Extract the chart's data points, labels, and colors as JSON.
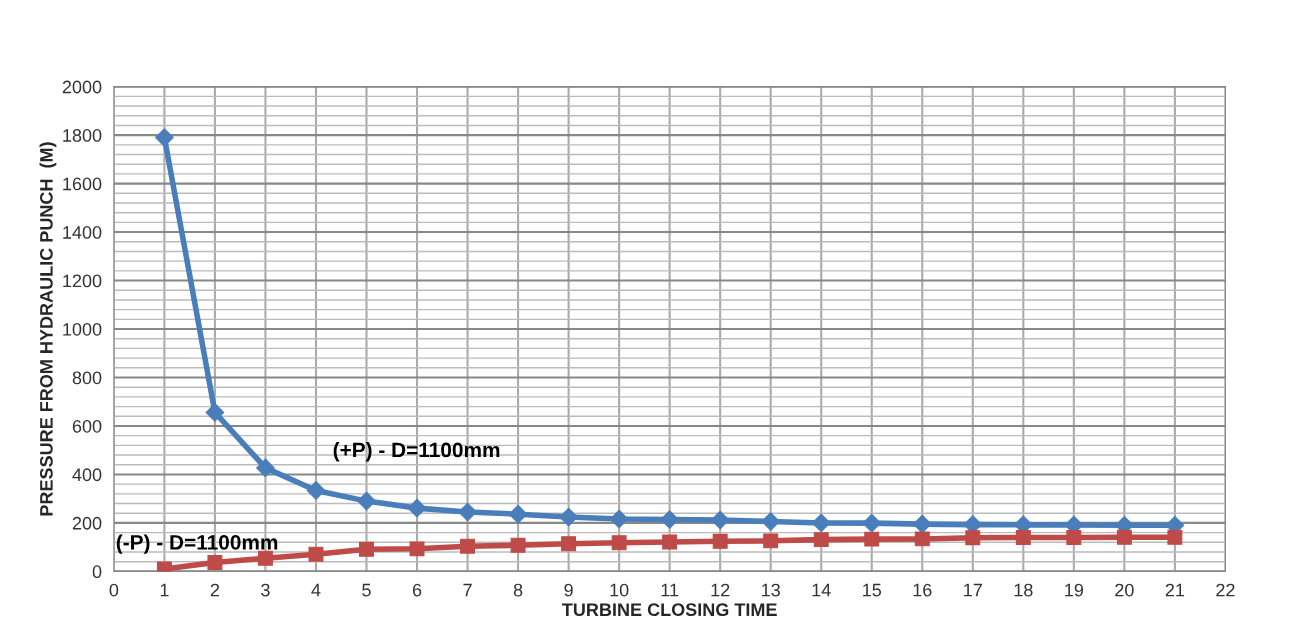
{
  "chart_data": {
    "type": "line",
    "xlabel": "TURBINE CLOSING TIME",
    "ylabel": "PRESSURE FROM HYDRAULIC PUNCH  (M)",
    "x": [
      1,
      2,
      3,
      4,
      5,
      6,
      7,
      8,
      9,
      10,
      11,
      12,
      13,
      14,
      15,
      16,
      17,
      18,
      19,
      20,
      21
    ],
    "series": [
      {
        "name": "(+P) - D=1100mm",
        "color": "#4a7ebb",
        "marker": "diamond",
        "values": [
          1790,
          656,
          427,
          334,
          290,
          261,
          245,
          236,
          224,
          216,
          214,
          212,
          206,
          200,
          199,
          195,
          193,
          192,
          191,
          190,
          190
        ]
      },
      {
        "name": "(-P) - D=1100mm",
        "color": "#be4b48",
        "marker": "square",
        "values": [
          10,
          37,
          54,
          71,
          91,
          93,
          104,
          108,
          114,
          118,
          121,
          124,
          126,
          131,
          133,
          134,
          139,
          140,
          140,
          141,
          141
        ]
      }
    ],
    "xlim": [
      0,
      22
    ],
    "xticks": [
      0,
      1,
      2,
      3,
      4,
      5,
      6,
      7,
      8,
      9,
      10,
      11,
      12,
      13,
      14,
      15,
      16,
      17,
      18,
      19,
      20,
      21,
      22
    ],
    "ylim": [
      0,
      2000
    ],
    "yticks": [
      0,
      200,
      400,
      600,
      800,
      1000,
      1200,
      1400,
      1600,
      1800,
      2000
    ],
    "grid": true,
    "legend": false
  }
}
